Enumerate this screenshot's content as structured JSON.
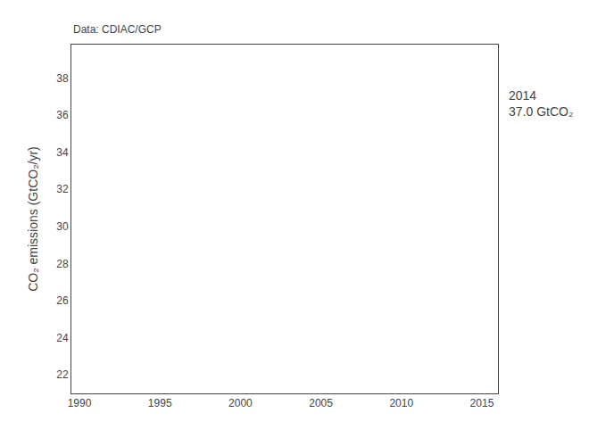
{
  "chart_data": {
    "type": "line",
    "ylabel": "CO₂ emissions (GtCO₂/yr)",
    "annotations": [
      "Data: CDIAC/GCP",
      "2014\n37.0 GtCO₂"
    ],
    "series": [],
    "xlim": [
      1989.5,
      2016
    ],
    "ylim": [
      21.0,
      39.8
    ],
    "xticks": [
      1990,
      1995,
      2000,
      2005,
      2010,
      2015
    ],
    "yticks": [
      22,
      24,
      26,
      28,
      30,
      32,
      34,
      36,
      38
    ],
    "grid": false
  }
}
